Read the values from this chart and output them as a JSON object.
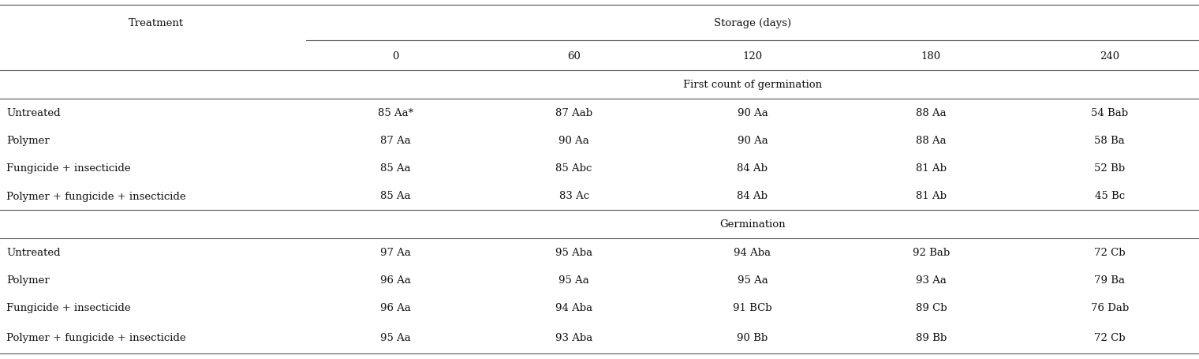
{
  "col_header_top": "Storage (days)",
  "col_header_sub": [
    "0",
    "60",
    "120",
    "180",
    "240"
  ],
  "row_header": "Treatment",
  "section1_title": "First count of germination",
  "section2_title": "Germination",
  "treatments": [
    "Untreated",
    "Polymer",
    "Fungicide + insecticide",
    "Polymer + fungicide + insecticide"
  ],
  "section1_data": [
    [
      "85 Aa*",
      "87 Aab",
      "90 Aa",
      "88 Aa",
      "54 Bab"
    ],
    [
      "87 Aa",
      "90 Aa",
      "90 Aa",
      "88 Aa",
      "58 Ba"
    ],
    [
      "85 Aa",
      "85 Abc",
      "84 Ab",
      "81 Ab",
      "52 Bb"
    ],
    [
      "85 Aa",
      "83 Ac",
      "84 Ab",
      "81 Ab",
      "45 Bc"
    ]
  ],
  "section2_data": [
    [
      "97 Aa",
      "95 Aba",
      "94 Aba",
      "92 Bab",
      "72 Cb"
    ],
    [
      "96 Aa",
      "95 Aa",
      "95 Aa",
      "93 Aa",
      "79 Ba"
    ],
    [
      "96 Aa",
      "94 Aba",
      "91 BCb",
      "89 Cb",
      "76 Dab"
    ],
    [
      "95 Aa",
      "93 Aba",
      "90 Bb",
      "89 Bb",
      "72 Cb"
    ]
  ],
  "font_size": 9.5,
  "header_font_size": 9.5,
  "line_color": "#555555",
  "text_color": "#111111"
}
